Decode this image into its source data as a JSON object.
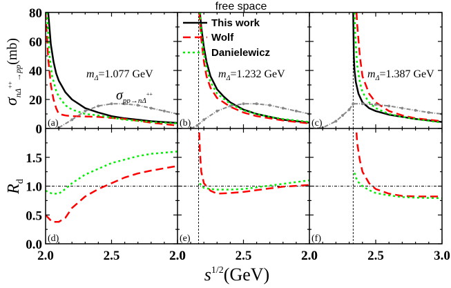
{
  "figure": {
    "title": "free space",
    "legend": [
      {
        "label": "This work",
        "color": "#000000",
        "dash": "solid"
      },
      {
        "label": "Wolf",
        "color": "#ff0000",
        "dash": "dashed"
      },
      {
        "label": "Danielewicz",
        "color": "#00ee00",
        "dash": "dotted"
      }
    ],
    "xlabel_base": "s",
    "xlabel_sup": "1/2",
    "xlabel_unit": "(GeV)",
    "top_ylabel_sym": "σ",
    "top_ylabel_sub": "nΔ",
    "top_ylabel_sup": "++",
    "top_ylabel_arrow": "→pp",
    "top_ylabel_unit": "(mb)",
    "bottom_ylabel_base": "R",
    "bottom_ylabel_sub": "d",
    "inset_sigma": "σ",
    "inset_sub": "pp→nΔ",
    "inset_sup": "++",
    "mass_prefix": "m",
    "mass_sub": "Δ",
    "masses": [
      "=1.077 GeV",
      "=1.232 GeV",
      "=1.387 GeV"
    ],
    "panel_labels": [
      "(a)",
      "(b)",
      "(c)",
      "(d)",
      "(e)",
      "(f)"
    ],
    "x_ticks_labels": [
      [
        "2.0",
        "2.5",
        "2.0"
      ],
      [
        "2.0",
        "2.5",
        "2.0"
      ],
      [
        "2.0",
        "2.5",
        "3.0"
      ]
    ],
    "top_y_ticks": [
      "0",
      "20",
      "40",
      "60",
      "80"
    ],
    "bottom_y_ticks": [
      "0.0",
      "0.5",
      "1.0",
      "1.5"
    ],
    "gray_color": "#888888"
  },
  "chart_data": [
    {
      "panel": "a",
      "type": "line",
      "mass": "1.077 GeV",
      "xlim": [
        2.0,
        3.0
      ],
      "ylim": [
        0,
        80
      ],
      "ylabel": "σ(mb)",
      "threshold": null,
      "series": [
        {
          "name": "This work",
          "x": [
            2.02,
            2.04,
            2.06,
            2.08,
            2.1,
            2.15,
            2.2,
            2.3,
            2.4,
            2.5,
            2.6,
            2.8,
            3.0
          ],
          "y": [
            80,
            58,
            46,
            38,
            33,
            25,
            20,
            14,
            11,
            8.5,
            7,
            5,
            3.8
          ]
        },
        {
          "name": "Wolf",
          "x": [
            2.0,
            2.02,
            2.04,
            2.06,
            2.08,
            2.1,
            2.15,
            2.2,
            2.4,
            2.6,
            2.8,
            3.0
          ],
          "y": [
            80,
            48,
            30,
            20,
            14,
            10,
            9,
            8.5,
            8,
            6.5,
            4,
            2
          ]
        },
        {
          "name": "Danielewicz",
          "x": [
            2.01,
            2.03,
            2.05,
            2.08,
            2.1,
            2.15,
            2.2,
            2.3,
            2.4,
            2.5,
            2.6,
            2.8,
            3.0
          ],
          "y": [
            80,
            50,
            36,
            26,
            22,
            16,
            13,
            10,
            9,
            7.5,
            6,
            4.5,
            3.5
          ]
        },
        {
          "name": "σ pp→nΔ++",
          "x": [
            2.1,
            2.2,
            2.3,
            2.4,
            2.5,
            2.6,
            2.7,
            2.8,
            2.9,
            3.0
          ],
          "y": [
            0.5,
            6,
            12,
            15.5,
            17,
            17,
            16,
            14,
            12,
            10
          ]
        }
      ]
    },
    {
      "panel": "b",
      "type": "line",
      "mass": "1.232 GeV",
      "xlim": [
        2.0,
        3.0
      ],
      "ylim": [
        0,
        80
      ],
      "threshold": 2.16,
      "series": [
        {
          "name": "This work",
          "x": [
            2.17,
            2.18,
            2.2,
            2.22,
            2.25,
            2.3,
            2.35,
            2.4,
            2.5,
            2.6,
            2.7,
            2.8,
            2.9,
            3.0
          ],
          "y": [
            80,
            70,
            56,
            46,
            36,
            27,
            22,
            18,
            13,
            10,
            8,
            6,
            5,
            4
          ]
        },
        {
          "name": "Wolf",
          "x": [
            2.165,
            2.18,
            2.2,
            2.22,
            2.25,
            2.3,
            2.4,
            2.5,
            2.6,
            2.7,
            2.8,
            3.0
          ],
          "y": [
            80,
            62,
            46,
            36,
            28,
            21,
            15,
            11,
            8.5,
            7,
            5.5,
            3.5
          ]
        },
        {
          "name": "Danielewicz",
          "x": [
            2.17,
            2.18,
            2.2,
            2.22,
            2.25,
            2.3,
            2.4,
            2.5,
            2.6,
            2.7,
            2.8,
            3.0
          ],
          "y": [
            80,
            66,
            52,
            42,
            32,
            24,
            17,
            12.5,
            10,
            8,
            6.5,
            4.5
          ]
        },
        {
          "name": "σ pp→nΔ++",
          "x": [
            2.1,
            2.15,
            2.2,
            2.3,
            2.4,
            2.5,
            2.6,
            2.7,
            2.8,
            2.9,
            3.0
          ],
          "y": [
            0,
            2,
            6,
            12,
            15.5,
            17,
            17,
            16,
            14,
            12,
            10
          ]
        }
      ]
    },
    {
      "panel": "c",
      "type": "line",
      "mass": "1.387 GeV",
      "xlim": [
        2.0,
        3.0
      ],
      "ylim": [
        0,
        80
      ],
      "threshold": 2.33,
      "series": [
        {
          "name": "This work",
          "x": [
            2.33,
            2.335,
            2.34,
            2.35,
            2.37,
            2.4,
            2.45,
            2.5,
            2.6,
            2.7,
            2.8,
            2.9,
            3.0
          ],
          "y": [
            80,
            50,
            40,
            32,
            24,
            18,
            14,
            12,
            9.5,
            8,
            6.5,
            5.5,
            4.5
          ]
        },
        {
          "name": "Wolf",
          "x": [
            2.355,
            2.36,
            2.38,
            2.4,
            2.45,
            2.5,
            2.6,
            2.7,
            2.8,
            3.0
          ],
          "y": [
            80,
            72,
            50,
            36,
            24,
            18,
            12,
            9,
            7,
            5
          ]
        },
        {
          "name": "Danielewicz",
          "x": [
            2.34,
            2.345,
            2.36,
            2.38,
            2.4,
            2.45,
            2.5,
            2.6,
            2.7,
            2.8,
            3.0
          ],
          "y": [
            80,
            66,
            44,
            32,
            25,
            18,
            14,
            10,
            8,
            6.5,
            4
          ]
        },
        {
          "name": "σ pp→nΔ++",
          "x": [
            2.0,
            2.1,
            2.2,
            2.25,
            2.3,
            2.33,
            2.4,
            2.5,
            2.6,
            2.7,
            2.8,
            2.9,
            3.0
          ],
          "y": [
            0,
            0.5,
            5,
            9,
            13,
            17,
            17,
            16.5,
            15.5,
            14,
            12.5,
            11,
            10
          ]
        }
      ]
    },
    {
      "panel": "d",
      "type": "line",
      "xlim": [
        2.0,
        3.0
      ],
      "ylim": [
        0,
        2
      ],
      "ylabel": "R_d",
      "reference_line": 1.0,
      "threshold": null,
      "series": [
        {
          "name": "Wolf",
          "x": [
            2.0,
            2.05,
            2.1,
            2.15,
            2.2,
            2.3,
            2.4,
            2.5,
            2.6,
            2.7,
            2.8,
            3.0
          ],
          "y": [
            0.5,
            0.38,
            0.38,
            0.45,
            0.62,
            0.82,
            0.95,
            1.05,
            1.15,
            1.22,
            1.27,
            1.35
          ]
        },
        {
          "name": "Danielewicz",
          "x": [
            2.0,
            2.05,
            2.1,
            2.15,
            2.2,
            2.3,
            2.4,
            2.5,
            2.6,
            2.7,
            2.8,
            3.0
          ],
          "y": [
            0.92,
            0.87,
            0.87,
            0.95,
            1.05,
            1.2,
            1.3,
            1.4,
            1.46,
            1.52,
            1.56,
            1.6
          ]
        }
      ]
    },
    {
      "panel": "e",
      "type": "line",
      "xlim": [
        2.0,
        3.0
      ],
      "ylim": [
        0,
        2
      ],
      "reference_line": 1.0,
      "threshold": 2.16,
      "series": [
        {
          "name": "Wolf",
          "x": [
            2.165,
            2.17,
            2.18,
            2.2,
            2.25,
            2.3,
            2.4,
            2.5,
            2.6,
            2.7,
            2.8,
            3.0
          ],
          "y": [
            1.93,
            1.6,
            1.25,
            1.05,
            0.92,
            0.87,
            0.88,
            0.9,
            0.93,
            0.96,
            0.99,
            1.02
          ]
        },
        {
          "name": "Danielewicz",
          "x": [
            2.17,
            2.18,
            2.2,
            2.25,
            2.3,
            2.4,
            2.5,
            2.6,
            2.7,
            2.8,
            3.0
          ],
          "y": [
            1.05,
            1.0,
            0.97,
            0.95,
            0.94,
            0.94,
            0.95,
            0.98,
            1.01,
            1.04,
            1.1
          ]
        }
      ]
    },
    {
      "panel": "f",
      "type": "line",
      "xlim": [
        2.0,
        3.0
      ],
      "ylim": [
        0,
        2
      ],
      "reference_line": 1.0,
      "threshold": 2.33,
      "series": [
        {
          "name": "Wolf",
          "x": [
            2.355,
            2.36,
            2.38,
            2.4,
            2.45,
            2.5,
            2.6,
            2.7,
            2.8,
            3.0
          ],
          "y": [
            1.93,
            1.75,
            1.45,
            1.25,
            1.05,
            0.95,
            0.87,
            0.83,
            0.82,
            0.82
          ]
        },
        {
          "name": "Danielewicz",
          "x": [
            2.34,
            2.35,
            2.37,
            2.4,
            2.45,
            2.5,
            2.6,
            2.7,
            2.8,
            3.0
          ],
          "y": [
            1.23,
            1.15,
            1.07,
            1.0,
            0.93,
            0.88,
            0.84,
            0.81,
            0.8,
            0.79
          ]
        }
      ]
    }
  ]
}
